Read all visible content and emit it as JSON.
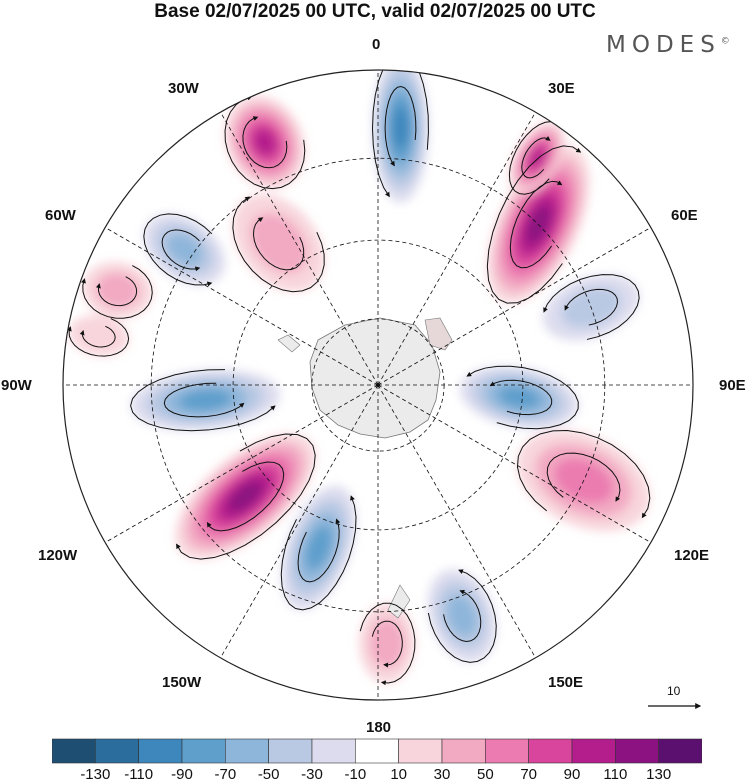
{
  "title": "Base 02/07/2025 00 UTC, valid 02/07/2025 00 UTC",
  "brand": "MODES",
  "brand_mark": "©",
  "longitude_labels": {
    "lon_0": "0",
    "lon_30e": "30E",
    "lon_60e": "60E",
    "lon_90e": "90E",
    "lon_120e": "120E",
    "lon_150e": "150E",
    "lon_180": "180",
    "lon_150w": "150W",
    "lon_120w": "120W",
    "lon_90w": "90W",
    "lon_60w": "60W",
    "lon_30w": "30W"
  },
  "reference_vector": {
    "label": "10"
  },
  "colorbar": {
    "ticks": [
      "-130",
      "-110",
      "-90",
      "-70",
      "-50",
      "-30",
      "-10",
      "10",
      "30",
      "50",
      "70",
      "90",
      "110",
      "130"
    ],
    "colors": [
      "#1f4e73",
      "#2b6e9e",
      "#3e87bd",
      "#5f9fcc",
      "#8eb6da",
      "#b9c9e3",
      "#dcdcee",
      "#ffffff",
      "#f8d5dc",
      "#f2a9c2",
      "#eb7bb0",
      "#d9449c",
      "#b41e8c",
      "#8c1281",
      "#5b0f6e"
    ]
  },
  "anomaly_centers": [
    {
      "lon": 5,
      "value": -90
    },
    {
      "lon": 45,
      "value": 110
    },
    {
      "lon": 35,
      "value": 90
    },
    {
      "lon": 95,
      "value": -70
    },
    {
      "lon": 115,
      "value": 50
    },
    {
      "lon": 160,
      "value": -50
    },
    {
      "lon": 178,
      "value": 40
    },
    {
      "lon": -160,
      "value": -70
    },
    {
      "lon": -130,
      "value": 120
    },
    {
      "lon": -95,
      "value": -70
    },
    {
      "lon": -70,
      "value": 30
    },
    {
      "lon": -55,
      "value": -50
    },
    {
      "lon": -35,
      "value": 40
    },
    {
      "lon": -25,
      "value": 100
    },
    {
      "lon": 70,
      "value": -30
    },
    {
      "lon": -80,
      "value": 25
    }
  ]
}
